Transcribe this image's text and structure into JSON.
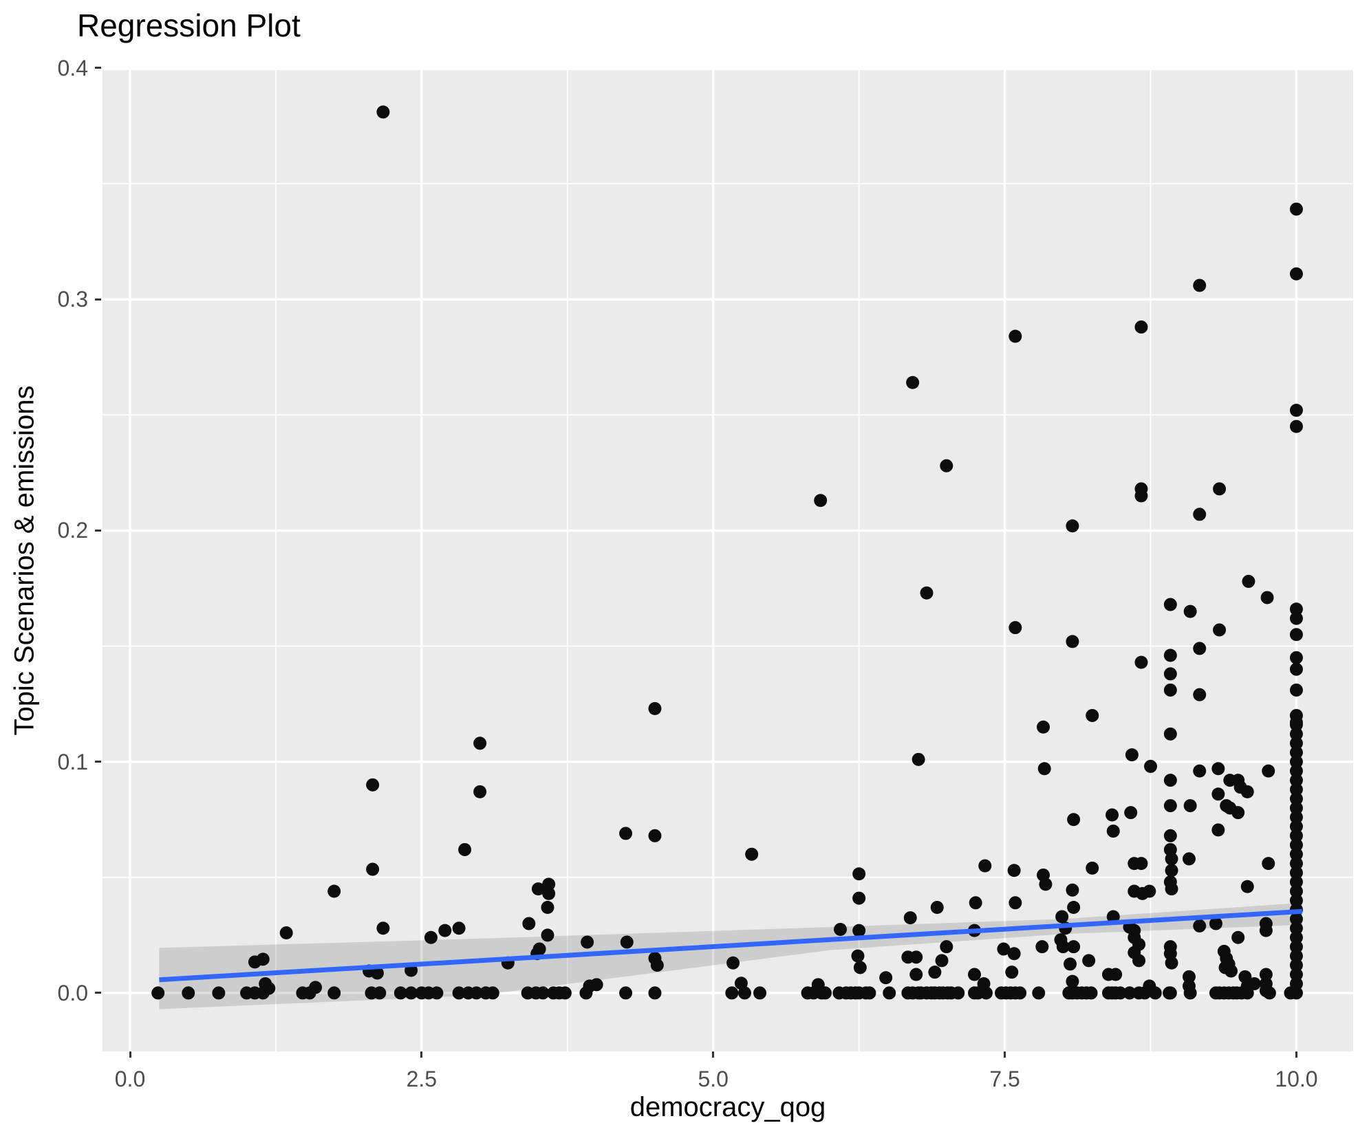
{
  "chart_data": {
    "type": "scatter",
    "title": "Regression Plot",
    "xlabel": "democracy_qog",
    "ylabel": "Topic Scenarios & emissions",
    "legend": "none",
    "grid": "major-and-minor-white-on-grey-panel",
    "xlim": [
      -0.236,
      10.487
    ],
    "ylim": [
      -0.0253,
      0.3991
    ],
    "x_ticks": {
      "values": [
        0,
        2.5,
        5,
        7.5,
        10
      ],
      "labels": [
        "0.0",
        "2.5",
        "5.0",
        "7.5",
        "10.0"
      ]
    },
    "y_ticks": {
      "values": [
        0,
        0.1,
        0.2,
        0.3,
        0.4
      ],
      "labels": [
        "0.0",
        "0.1",
        "0.2",
        "0.3",
        "0.4"
      ]
    },
    "x_minor": [
      1.25,
      3.75,
      6.25,
      8.75
    ],
    "y_minor": [
      0.05,
      0.15,
      0.25,
      0.35
    ],
    "colors": {
      "panel_bg": "#EBEBEB",
      "grid": "#FFFFFF",
      "point": "#0D0D0D",
      "line": "#3366FF",
      "ribbon": "rgba(60,60,60,0.17)",
      "tick_text": "#4D4D4D",
      "tick_mark": "#333333",
      "title_text": "#000000"
    },
    "point_radius": 9.5,
    "line_width": 7,
    "regression_line": {
      "x": [
        0.25,
        10.05
      ],
      "y": [
        0.0057,
        0.0353
      ]
    },
    "ribbon": {
      "x": [
        0.25,
        3.0,
        6.0,
        8.0,
        10.05
      ],
      "top": [
        0.0195,
        0.0235,
        0.0285,
        0.032,
        0.039
      ],
      "bottom": [
        -0.007,
        -0.001,
        0.0185,
        0.0255,
        0.0295
      ]
    },
    "points": [
      [
        2.17,
        0.381
      ],
      [
        10,
        0.339
      ],
      [
        10,
        0.311
      ],
      [
        9.17,
        0.306
      ],
      [
        8.67,
        0.288
      ],
      [
        7.59,
        0.284
      ],
      [
        6.71,
        0.264
      ],
      [
        10,
        0.252
      ],
      [
        10,
        0.245
      ],
      [
        7.0,
        0.228
      ],
      [
        8.67,
        0.218
      ],
      [
        8.67,
        0.215
      ],
      [
        9.34,
        0.218
      ],
      [
        5.92,
        0.213
      ],
      [
        9.17,
        0.207
      ],
      [
        8.08,
        0.202
      ],
      [
        9.59,
        0.178
      ],
      [
        6.83,
        0.173
      ],
      [
        9.75,
        0.171
      ],
      [
        8.92,
        0.168
      ],
      [
        10,
        0.166
      ],
      [
        9.09,
        0.165
      ],
      [
        10,
        0.162
      ],
      [
        7.59,
        0.158
      ],
      [
        9.34,
        0.157
      ],
      [
        10,
        0.155
      ],
      [
        8.08,
        0.152
      ],
      [
        9.17,
        0.149
      ],
      [
        8.92,
        0.146
      ],
      [
        10,
        0.145
      ],
      [
        8.67,
        0.143
      ],
      [
        10,
        0.14
      ],
      [
        8.92,
        0.138
      ],
      [
        8.92,
        0.131
      ],
      [
        9.17,
        0.129
      ],
      [
        10,
        0.131
      ],
      [
        4.5,
        0.123
      ],
      [
        8.25,
        0.12
      ],
      [
        10,
        0.12
      ],
      [
        10,
        0.117
      ],
      [
        7.83,
        0.115
      ],
      [
        8.92,
        0.112
      ],
      [
        3.0,
        0.108
      ],
      [
        6.76,
        0.101
      ],
      [
        8.59,
        0.103
      ],
      [
        8.75,
        0.098
      ],
      [
        7.84,
        0.097
      ],
      [
        9.17,
        0.096
      ],
      [
        9.33,
        0.097
      ],
      [
        9.76,
        0.096
      ],
      [
        9.43,
        0.092
      ],
      [
        9.5,
        0.092
      ],
      [
        8.92,
        0.092
      ],
      [
        2.08,
        0.09
      ],
      [
        9.52,
        0.089
      ],
      [
        3.0,
        0.087
      ],
      [
        9.58,
        0.087
      ],
      [
        9.33,
        0.086
      ],
      [
        8.92,
        0.081
      ],
      [
        9.09,
        0.081
      ],
      [
        9.4,
        0.081
      ],
      [
        9.43,
        0.08
      ],
      [
        9.5,
        0.078
      ],
      [
        8.09,
        0.075
      ],
      [
        8.42,
        0.077
      ],
      [
        8.58,
        0.078
      ],
      [
        9.33,
        0.0705
      ],
      [
        8.43,
        0.07
      ],
      [
        4.25,
        0.069
      ],
      [
        4.5,
        0.068
      ],
      [
        8.92,
        0.068
      ],
      [
        2.87,
        0.062
      ],
      [
        8.92,
        0.062
      ],
      [
        5.33,
        0.06
      ],
      [
        8.93,
        0.058
      ],
      [
        9.08,
        0.058
      ],
      [
        9.76,
        0.056
      ],
      [
        8.61,
        0.056
      ],
      [
        8.67,
        0.056
      ],
      [
        7.33,
        0.055
      ],
      [
        8.25,
        0.054
      ],
      [
        2.08,
        0.0535
      ],
      [
        7.58,
        0.053
      ],
      [
        8.93,
        0.053
      ],
      [
        7.83,
        0.051
      ],
      [
        6.25,
        0.0515
      ],
      [
        8.92,
        0.048
      ],
      [
        7.85,
        0.047
      ],
      [
        3.59,
        0.047
      ],
      [
        9.58,
        0.046
      ],
      [
        8.93,
        0.045
      ],
      [
        3.5,
        0.045
      ],
      [
        8.08,
        0.0445
      ],
      [
        1.75,
        0.044
      ],
      [
        8.61,
        0.044
      ],
      [
        8.68,
        0.043
      ],
      [
        8.74,
        0.044
      ],
      [
        3.59,
        0.043
      ],
      [
        6.25,
        0.041
      ],
      [
        6.92,
        0.037
      ],
      [
        7.25,
        0.039
      ],
      [
        7.59,
        0.039
      ],
      [
        8.09,
        0.037
      ],
      [
        3.58,
        0.037
      ],
      [
        7.99,
        0.033
      ],
      [
        8.43,
        0.033
      ],
      [
        6.69,
        0.0325
      ],
      [
        3.42,
        0.03
      ],
      [
        9.31,
        0.03
      ],
      [
        9.74,
        0.03
      ],
      [
        9.17,
        0.029
      ],
      [
        8.02,
        0.028
      ],
      [
        8.57,
        0.0285
      ],
      [
        2.17,
        0.028
      ],
      [
        2.82,
        0.028
      ],
      [
        2.7,
        0.027
      ],
      [
        6.09,
        0.0275
      ],
      [
        6.25,
        0.027
      ],
      [
        7.24,
        0.027
      ],
      [
        8.61,
        0.027
      ],
      [
        9.74,
        0.027
      ],
      [
        1.34,
        0.026
      ],
      [
        3.58,
        0.025
      ],
      [
        2.58,
        0.024
      ],
      [
        8.61,
        0.024
      ],
      [
        9.5,
        0.024
      ],
      [
        7.98,
        0.023
      ],
      [
        3.92,
        0.022
      ],
      [
        4.26,
        0.022
      ],
      [
        8.65,
        0.021
      ],
      [
        7.0,
        0.02
      ],
      [
        7.82,
        0.02
      ],
      [
        8.0,
        0.02
      ],
      [
        8.09,
        0.02
      ],
      [
        3.51,
        0.019
      ],
      [
        7.49,
        0.019
      ],
      [
        8.92,
        0.02
      ],
      [
        9.38,
        0.018
      ],
      [
        8.61,
        0.0175
      ],
      [
        3.49,
        0.017
      ],
      [
        7.58,
        0.017
      ],
      [
        8.92,
        0.017
      ],
      [
        6.24,
        0.016
      ],
      [
        6.67,
        0.0155
      ],
      [
        6.74,
        0.0155
      ],
      [
        4.5,
        0.015
      ],
      [
        9.4,
        0.015
      ],
      [
        1.14,
        0.0146
      ],
      [
        6.96,
        0.014
      ],
      [
        8.65,
        0.014
      ],
      [
        8.22,
        0.014
      ],
      [
        1.07,
        0.0134
      ],
      [
        3.24,
        0.013
      ],
      [
        5.17,
        0.013
      ],
      [
        8.93,
        0.013
      ],
      [
        8.06,
        0.0125
      ],
      [
        9.42,
        0.0125
      ],
      [
        4.52,
        0.012
      ],
      [
        6.26,
        0.011
      ],
      [
        9.39,
        0.011
      ],
      [
        2.41,
        0.0098
      ],
      [
        2.05,
        0.0095
      ],
      [
        9.44,
        0.0095
      ],
      [
        6.9,
        0.009
      ],
      [
        7.56,
        0.009
      ],
      [
        2.12,
        0.0086
      ],
      [
        6.74,
        0.008
      ],
      [
        7.24,
        0.008
      ],
      [
        8.39,
        0.008
      ],
      [
        9.74,
        0.008
      ],
      [
        8.45,
        0.008
      ],
      [
        9.08,
        0.007
      ],
      [
        9.56,
        0.007
      ],
      [
        6.48,
        0.0066
      ],
      [
        8.08,
        0.005
      ],
      [
        9.08,
        0.003
      ],
      [
        1.16,
        0.004
      ],
      [
        9.64,
        0.004
      ],
      [
        9.74,
        0.004
      ],
      [
        9.58,
        0.003
      ],
      [
        9.74,
        0.001
      ],
      [
        1.19,
        0.002
      ],
      [
        1.59,
        0.0024
      ],
      [
        3.94,
        0.003
      ],
      [
        4.0,
        0.0036
      ],
      [
        5.24,
        0.0042
      ],
      [
        5.9,
        0.0036
      ],
      [
        7.32,
        0.004
      ],
      [
        8.74,
        0.003
      ]
    ],
    "zero_row_x": [
      0.24,
      0.5,
      0.76,
      1.0,
      1.07,
      1.14,
      1.48,
      1.54,
      1.75,
      2.07,
      2.14,
      2.32,
      2.41,
      2.5,
      2.56,
      2.63,
      2.82,
      2.9,
      2.97,
      3.05,
      3.11,
      3.41,
      3.48,
      3.54,
      3.63,
      3.68,
      3.73,
      3.91,
      4.25,
      4.5,
      5.16,
      5.27,
      5.4,
      5.81,
      5.86,
      5.93,
      5.96,
      6.08,
      6.14,
      6.18,
      6.22,
      6.25,
      6.31,
      6.34,
      6.51,
      6.67,
      6.71,
      6.76,
      6.78,
      6.83,
      6.87,
      6.9,
      6.94,
      6.97,
      7.01,
      7.04,
      7.1,
      7.24,
      7.27,
      7.34,
      7.47,
      7.51,
      7.55,
      7.59,
      7.63,
      7.79,
      8.05,
      8.08,
      8.12,
      8.16,
      8.2,
      8.24,
      8.39,
      8.42,
      8.45,
      8.49,
      8.57,
      8.65,
      8.7,
      8.79,
      8.91,
      8.92,
      9.09,
      9.31,
      9.34,
      9.38,
      9.42,
      9.46,
      9.49,
      9.53,
      9.58,
      9.77,
      9.95
    ],
    "col10_y": [
      0,
      0.004,
      0.008,
      0.012,
      0.016,
      0.02,
      0.024,
      0.028,
      0.032,
      0.036,
      0.04,
      0.044,
      0.048,
      0.052,
      0.056,
      0.06,
      0.064,
      0.068,
      0.072,
      0.076,
      0.08,
      0.084,
      0.088,
      0.092,
      0.096,
      0.1,
      0.104,
      0.108,
      0.112,
      0.116
    ]
  }
}
